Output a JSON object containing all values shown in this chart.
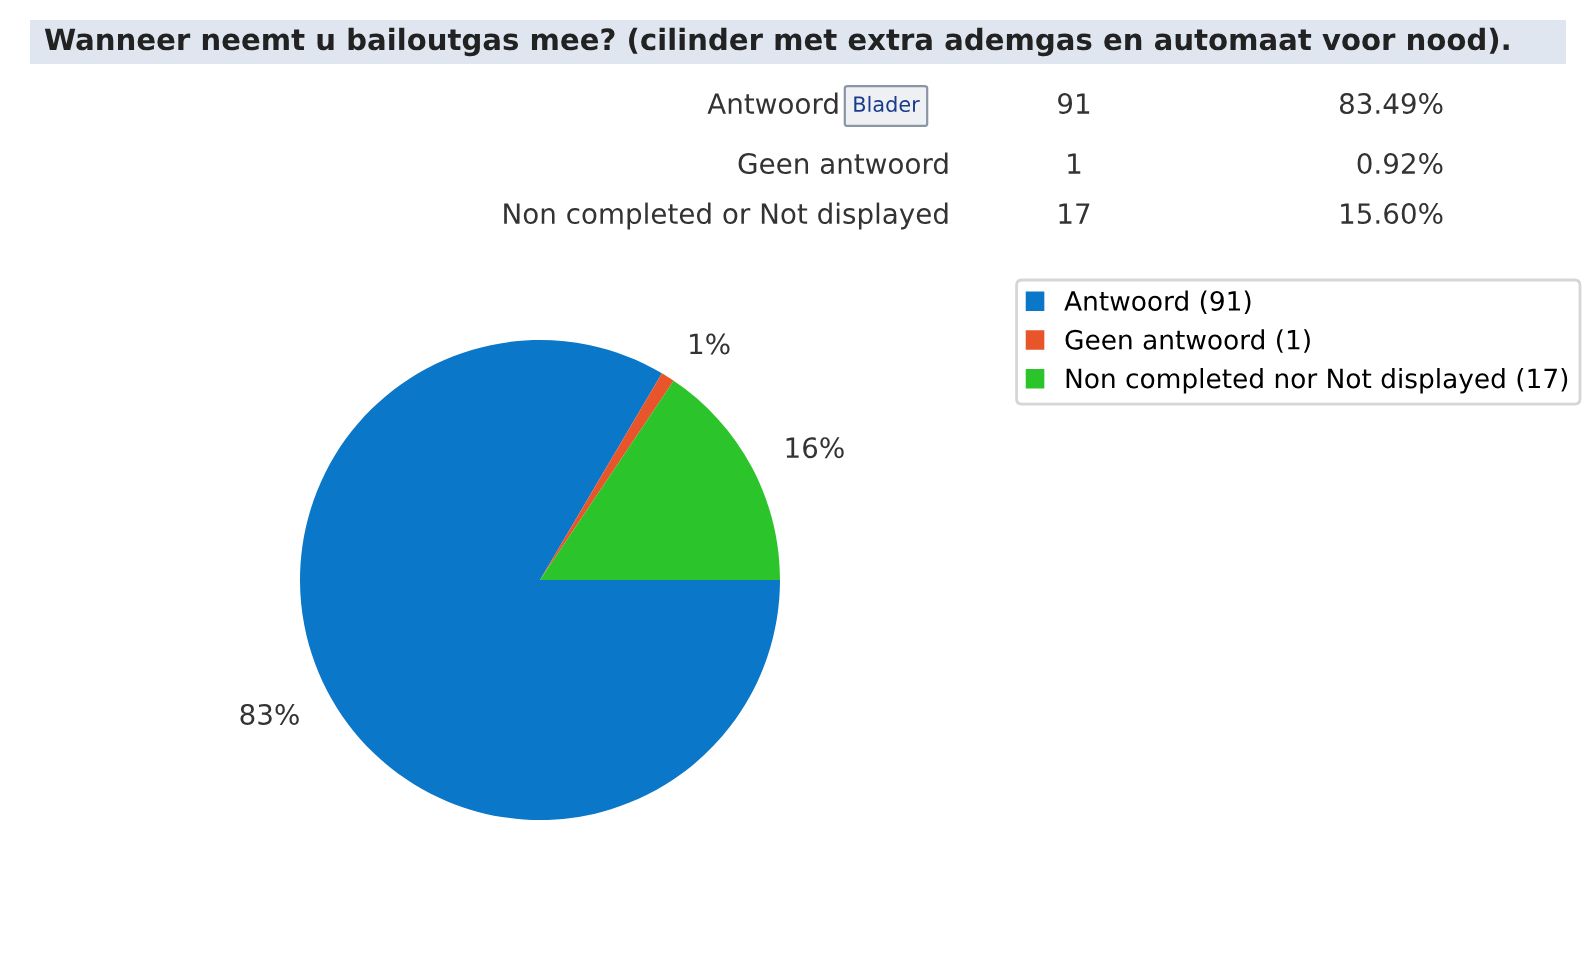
{
  "chart_data": {
    "type": "pie",
    "title": "Wanneer neemt u bailoutgas mee? (cilinder met extra ademgas en automaat voor nood).",
    "categories": [
      "Antwoord (91)",
      "Geen antwoord (1)",
      "Non completed nor Not displayed (17)"
    ],
    "values": [
      83.49,
      0.92,
      15.6
    ],
    "colors": [
      "#0a77c8",
      "#e8552a",
      "#2bc42b"
    ],
    "value_labels": [
      "83%",
      "1%",
      "16%"
    ],
    "legend": "top right",
    "annotations": [
      "Antwoord",
      "91",
      "83.49%",
      "Geen antwoord",
      "1",
      "0.92%",
      "Non completed or Not displayed",
      "17",
      "15.60%",
      "Blader"
    ]
  }
}
